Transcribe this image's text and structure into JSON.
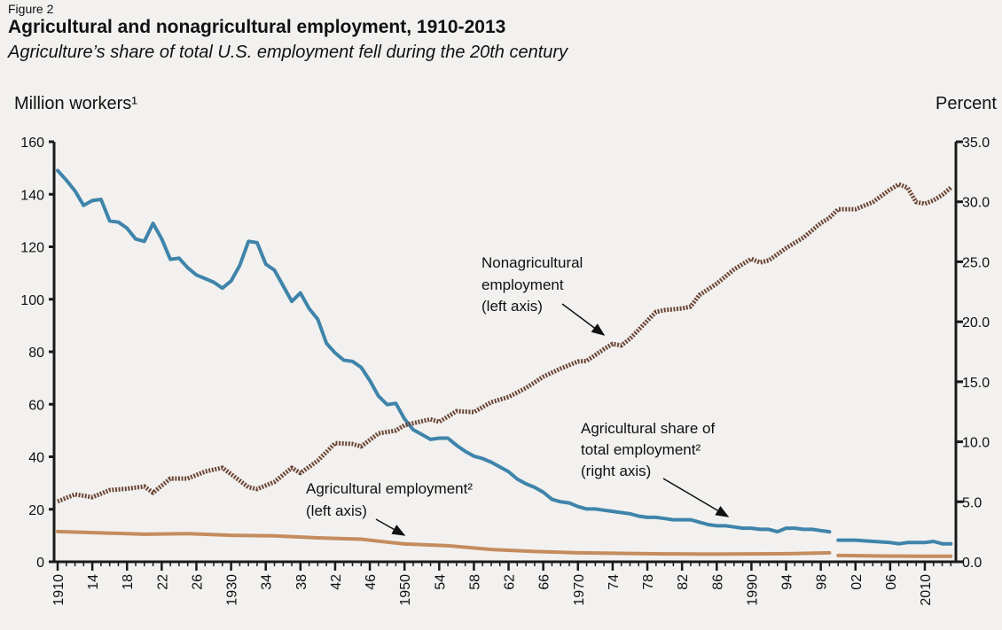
{
  "figure_label": "Figure 2",
  "chart_data": {
    "type": "line",
    "title": "Agricultural and nonagricultural employment, 1910-2013",
    "subtitle": "Agriculture’s share of total U.S. employment fell during the 20th century",
    "ylabel": "Million workers¹",
    "ylabel_right": "Percent",
    "xlim": [
      1910,
      2013
    ],
    "ylim": [
      0,
      160
    ],
    "ylim_right": [
      0,
      35
    ],
    "yticks": [
      "0",
      "20",
      "40",
      "60",
      "80",
      "100",
      "120",
      "140",
      "160"
    ],
    "yticks_right": [
      "0.0",
      "5.0",
      "10.0",
      "15.0",
      "20.0",
      "25.0",
      "30.0",
      "35.0"
    ],
    "xticks": [
      "1910",
      "14",
      "18",
      "22",
      "26",
      "1930",
      "34",
      "38",
      "42",
      "46",
      "1950",
      "54",
      "58",
      "62",
      "66",
      "1970",
      "74",
      "78",
      "82",
      "86",
      "1990",
      "94",
      "98",
      "02",
      "06",
      "2010"
    ],
    "grid": false,
    "colors": {
      "ag_share": "#3f84aa",
      "nonag": "#6b4535",
      "ag_emp": "#c48c5e",
      "axis": "#1a1a1a"
    },
    "series": [
      {
        "name": "Agricultural share of total employment² (right axis)",
        "axis": "right",
        "style": "solid",
        "segments": [
          {
            "x": [
              1910,
              1911,
              1912,
              1913,
              1914,
              1915,
              1916,
              1917,
              1918,
              1919,
              1920,
              1921,
              1922,
              1923,
              1924,
              1925,
              1926,
              1927,
              1928,
              1929,
              1930,
              1931,
              1932,
              1933,
              1934,
              1935,
              1936,
              1937,
              1938,
              1939,
              1940,
              1941,
              1942,
              1943,
              1944,
              1945,
              1946,
              1947,
              1948,
              1949,
              1950,
              1951,
              1952,
              1953,
              1954,
              1955,
              1956,
              1957,
              1958,
              1959,
              1960,
              1961,
              1962,
              1963,
              1964,
              1965,
              1966,
              1967,
              1968,
              1969,
              1970,
              1971,
              1972,
              1973,
              1974,
              1975,
              1976,
              1977,
              1978,
              1979,
              1980,
              1981,
              1982,
              1983,
              1984,
              1985,
              1986,
              1987,
              1988,
              1989,
              1990,
              1991,
              1992,
              1993,
              1994,
              1995,
              1996,
              1997,
              1998,
              1999
            ],
            "y": [
              32.6,
              31.8,
              30.9,
              29.7,
              30.1,
              30.2,
              28.4,
              28.3,
              27.8,
              26.9,
              26.7,
              28.2,
              26.9,
              25.2,
              25.3,
              24.5,
              23.9,
              23.6,
              23.3,
              22.8,
              23.4,
              24.7,
              26.7,
              26.6,
              24.8,
              24.3,
              23.0,
              21.7,
              22.4,
              21.1,
              20.2,
              18.2,
              17.4,
              16.8,
              16.7,
              16.2,
              15.1,
              13.8,
              13.1,
              13.2,
              11.9,
              11.0,
              10.6,
              10.2,
              10.3,
              10.3,
              9.7,
              9.2,
              8.8,
              8.6,
              8.3,
              7.9,
              7.5,
              6.9,
              6.5,
              6.2,
              5.8,
              5.2,
              5.0,
              4.9,
              4.6,
              4.4,
              4.4,
              4.3,
              4.2,
              4.1,
              4.0,
              3.8,
              3.7,
              3.7,
              3.6,
              3.5,
              3.5,
              3.5,
              3.3,
              3.1,
              3.0,
              3.0,
              2.9,
              2.8,
              2.8,
              2.7,
              2.7,
              2.5,
              2.8,
              2.8,
              2.7,
              2.7,
              2.6,
              2.5
            ]
          },
          {
            "x": [
              2000,
              2002,
              2004,
              2006,
              2007,
              2008,
              2010,
              2011,
              2012,
              2013
            ],
            "y": [
              1.8,
              1.8,
              1.7,
              1.6,
              1.5,
              1.6,
              1.6,
              1.7,
              1.5,
              1.5
            ]
          }
        ]
      },
      {
        "name": "Nonagricultural employment (left axis)",
        "axis": "left",
        "style": "dotted",
        "segments": [
          {
            "x": [
              1910,
              1912,
              1914,
              1916,
              1918,
              1920,
              1921,
              1923,
              1925,
              1927,
              1929,
              1930,
              1932,
              1933,
              1935,
              1937,
              1938,
              1940,
              1942,
              1944,
              1945,
              1947,
              1949,
              1950,
              1953,
              1954,
              1956,
              1958,
              1960,
              1962,
              1964,
              1966,
              1968,
              1970,
              1971,
              1973,
              1974,
              1975,
              1976,
              1978,
              1979,
              1980,
              1982,
              1983,
              1984,
              1986,
              1988,
              1990,
              1991,
              1992,
              1994,
              1996,
              1998,
              1999,
              2000,
              2002,
              2004,
              2006,
              2007,
              2008,
              2009,
              2010,
              2011,
              2012,
              2013
            ],
            "y": [
              23,
              25.7,
              24.6,
              27.3,
              27.8,
              28.7,
              26.3,
              31.7,
              31.7,
              34.4,
              35.8,
              33.4,
              28.4,
              27.7,
              30.4,
              35.8,
              33.8,
              38.5,
              45.2,
              44.9,
              43.9,
              48.9,
              50,
              52,
              54.3,
              53.3,
              57.4,
              57,
              60.8,
              62.8,
              66.2,
              70.5,
              73.6,
              76.3,
              76.5,
              81,
              83,
              82.4,
              85,
              91.8,
              95.2,
              95.9,
              96.5,
              97.2,
              101.6,
              106,
              111.4,
              115.4,
              114,
              114.8,
              119.5,
              123.5,
              129,
              131,
              134.3,
              134.3,
              137,
              141.8,
              143.8,
              142.5,
              137,
              136.4,
              137.7,
              139.7,
              142.5
            ]
          }
        ]
      },
      {
        "name": "Agricultural employment² (left axis)",
        "axis": "left",
        "style": "solid",
        "segments": [
          {
            "x": [
              1910,
              1915,
              1920,
              1925,
              1930,
              1935,
              1940,
              1945,
              1948,
              1950,
              1955,
              1960,
              1965,
              1970,
              1975,
              1980,
              1985,
              1990,
              1995,
              1999
            ],
            "y": [
              11.5,
              11.0,
              10.5,
              10.7,
              10.1,
              9.9,
              9.1,
              8.6,
              7.5,
              6.8,
              6.1,
              4.7,
              3.9,
              3.4,
              3.2,
              3.0,
              2.9,
              3.0,
              3.1,
              3.4
            ]
          },
          {
            "x": [
              2000,
              2005,
              2010,
              2013
            ],
            "y": [
              2.4,
              2.2,
              2.1,
              2.1
            ]
          }
        ]
      }
    ],
    "annotations": [
      {
        "lines": [
          "Nonagricultural",
          "employment",
          "(left axis)"
        ]
      },
      {
        "lines": [
          "Agricultural share of",
          "total employment²",
          "(right axis)"
        ]
      },
      {
        "lines": [
          "Agricultural employment²",
          "(left axis)"
        ]
      }
    ]
  }
}
